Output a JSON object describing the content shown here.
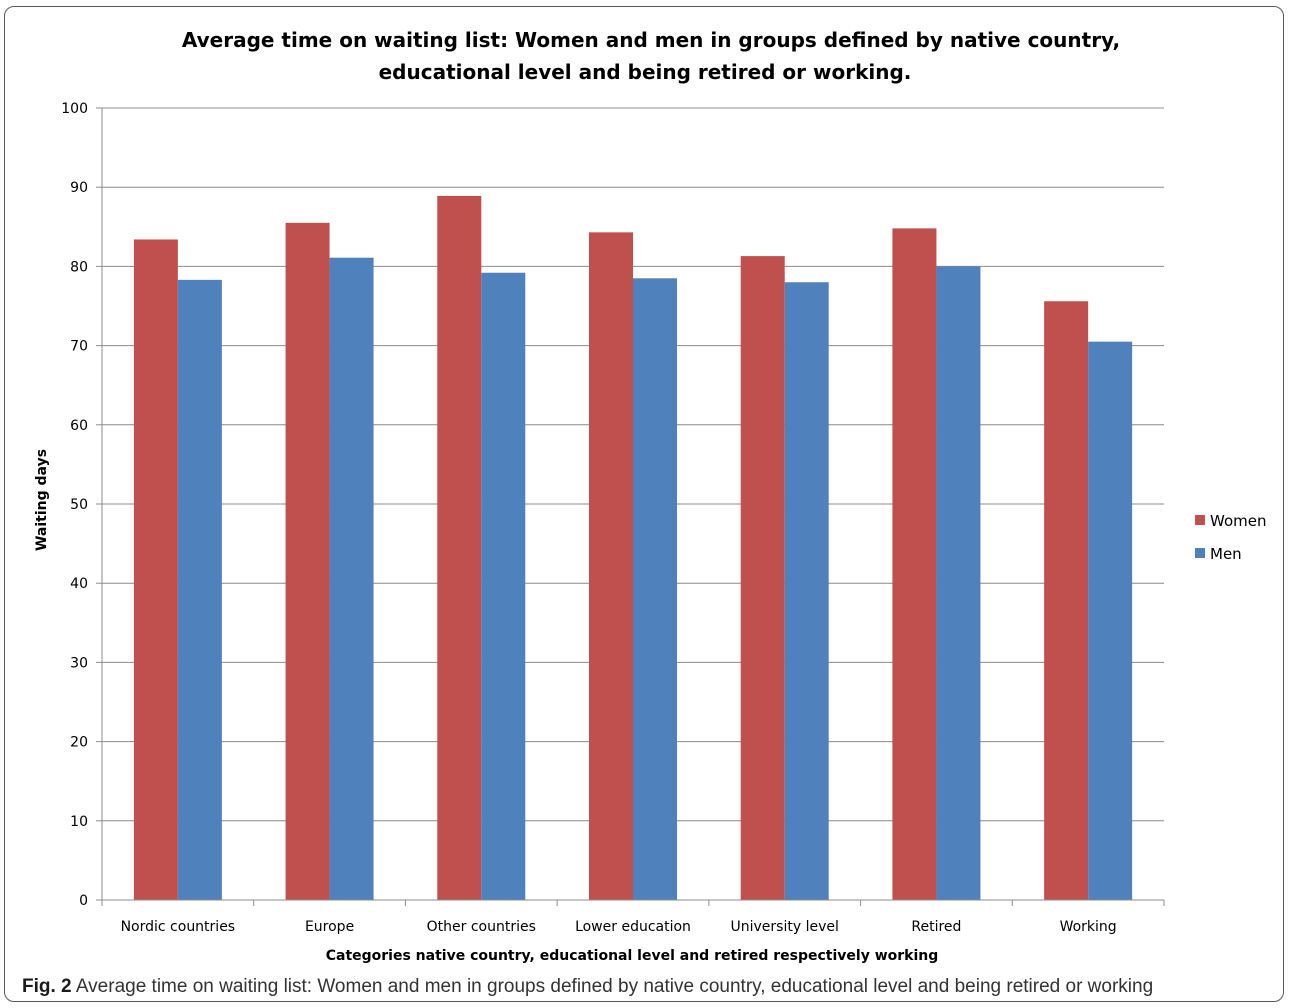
{
  "chart_data": {
    "type": "bar",
    "title_line1": "Average time on waiting list: Women and men in groups defined by native country,",
    "title_line2": "educational level and being retired or working.",
    "xlabel": "Categories native country, educational  level and retired respectively working",
    "ylabel": "Waiting days",
    "ylim": [
      0,
      100
    ],
    "yticks": [
      "0",
      "10",
      "20",
      "30",
      "40",
      "50",
      "60",
      "70",
      "80",
      "90",
      "100"
    ],
    "grid": true,
    "legend_position": "right",
    "categories": [
      "Nordic countries",
      "Europe",
      "Other countries",
      "Lower education",
      "University level",
      "Retired",
      "Working"
    ],
    "series": [
      {
        "name": "Women",
        "color": "#c0504d",
        "values": [
          83.4,
          85.5,
          88.9,
          84.3,
          81.3,
          84.8,
          75.6
        ]
      },
      {
        "name": "Men",
        "color": "#4f81bd",
        "values": [
          78.3,
          81.1,
          79.2,
          78.5,
          78.0,
          80.0,
          70.5
        ]
      }
    ]
  },
  "caption": {
    "label": "Fig. 2",
    "text": " Average time on waiting list: Women and men in groups defined by native country, educational level and being retired or working"
  }
}
